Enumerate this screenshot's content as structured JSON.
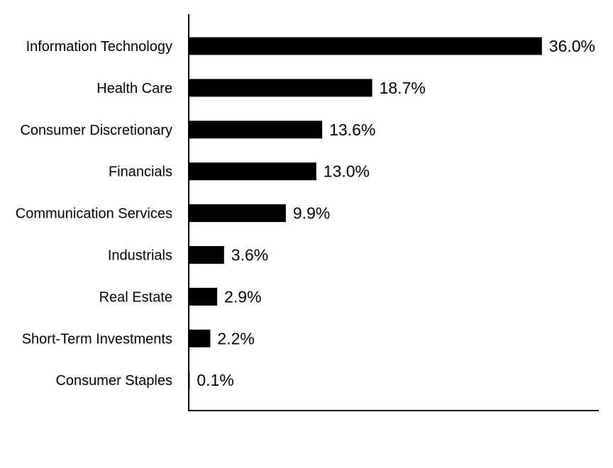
{
  "chart_data": {
    "type": "bar",
    "orientation": "horizontal",
    "categories": [
      "Information Technology",
      "Health Care",
      "Consumer Discretionary",
      "Financials",
      "Communication Services",
      "Industrials",
      "Real Estate",
      "Short-Term Investments",
      "Consumer Staples"
    ],
    "values": [
      36.0,
      18.7,
      13.6,
      13.0,
      9.9,
      3.6,
      2.9,
      2.2,
      0.1
    ],
    "value_labels": [
      "36.0%",
      "18.7%",
      "13.6%",
      "13.0%",
      "9.9%",
      "3.6%",
      "2.9%",
      "2.2%",
      "0.1%"
    ],
    "title": "",
    "xlabel": "",
    "ylabel": "",
    "xlim": [
      0,
      41.8
    ],
    "grid": false,
    "legend": "none",
    "bar_color": "#000000"
  }
}
